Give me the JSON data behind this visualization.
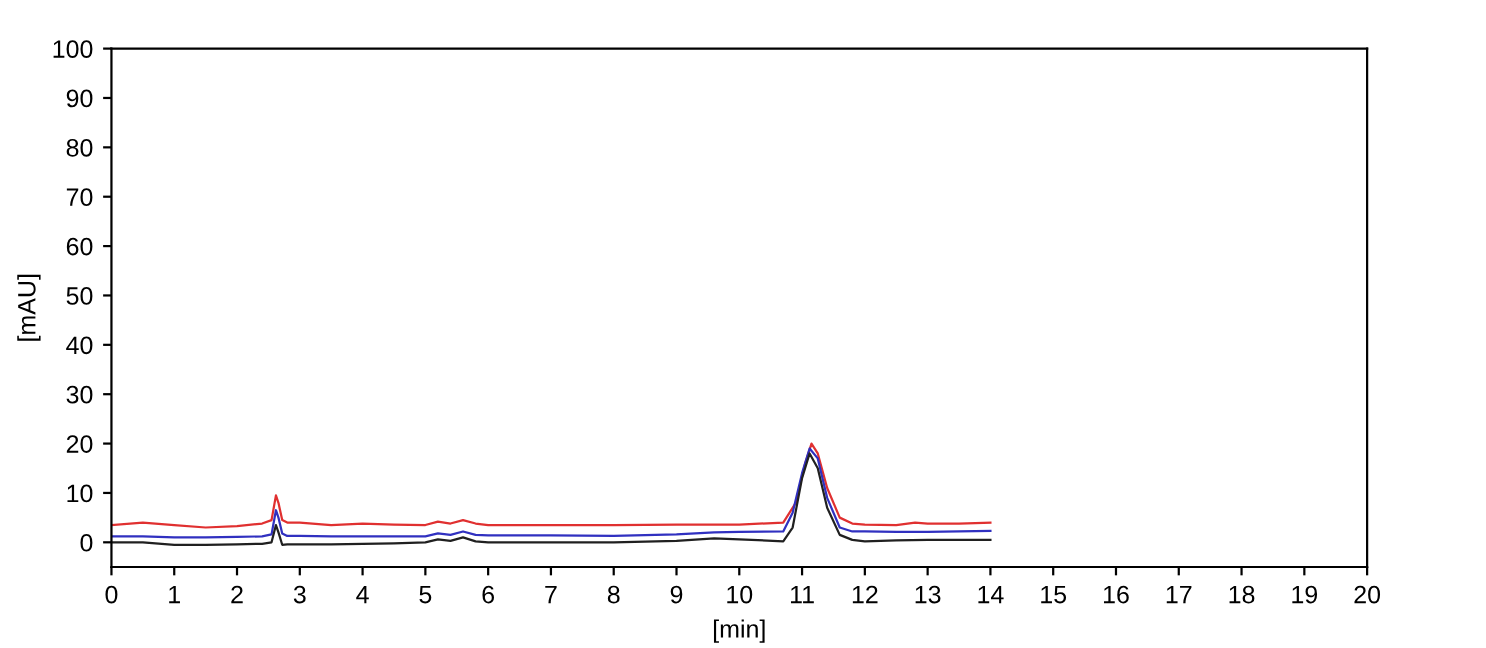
{
  "chart_data": {
    "type": "line",
    "xlabel": "[min]",
    "ylabel": "[mAU]",
    "xlim": [
      0,
      20
    ],
    "ylim": [
      -5,
      100
    ],
    "xticks": [
      0,
      1,
      2,
      3,
      4,
      5,
      6,
      7,
      8,
      9,
      10,
      11,
      12,
      13,
      14,
      15,
      16,
      17,
      18,
      19,
      20
    ],
    "yticks": [
      0,
      10,
      20,
      30,
      40,
      50,
      60,
      70,
      80,
      90,
      100
    ],
    "grid": false,
    "legend": false,
    "marker": "none",
    "line_style": "solid",
    "series": [
      {
        "color": "#e03030",
        "x": [
          0,
          0.5,
          1,
          1.5,
          2,
          2.4,
          2.55,
          2.62,
          2.66,
          2.72,
          2.8,
          3,
          3.5,
          4,
          4.5,
          5,
          5.2,
          5.4,
          5.6,
          5.8,
          6,
          7,
          8,
          9,
          10,
          10.7,
          10.9,
          11.05,
          11.15,
          11.25,
          11.4,
          11.6,
          11.8,
          12,
          12.5,
          12.8,
          13,
          13.5,
          14
        ],
        "values": [
          3.5,
          4,
          3.5,
          3,
          3.3,
          3.8,
          4.5,
          9.5,
          8,
          4.5,
          4,
          4,
          3.5,
          3.8,
          3.6,
          3.5,
          4.2,
          3.8,
          4.5,
          3.8,
          3.5,
          3.5,
          3.5,
          3.6,
          3.6,
          4,
          8,
          16,
          20,
          18,
          11,
          5,
          3.8,
          3.6,
          3.5,
          4,
          3.8,
          3.8,
          4
        ]
      },
      {
        "color": "#3030c0",
        "x": [
          0,
          0.5,
          1,
          1.5,
          2,
          2.4,
          2.55,
          2.62,
          2.66,
          2.72,
          2.8,
          3,
          3.5,
          4,
          4.5,
          5,
          5.2,
          5.4,
          5.6,
          5.8,
          6,
          7,
          8,
          9,
          9.6,
          10,
          10.7,
          10.85,
          11.0,
          11.12,
          11.25,
          11.4,
          11.6,
          11.8,
          12,
          12.5,
          13,
          13.5,
          14
        ],
        "values": [
          1.2,
          1.2,
          1,
          1,
          1.1,
          1.2,
          1.6,
          6.5,
          5,
          1.8,
          1.3,
          1.3,
          1.2,
          1.2,
          1.2,
          1.2,
          1.8,
          1.5,
          2.2,
          1.5,
          1.4,
          1.4,
          1.3,
          1.6,
          2,
          2.1,
          2.2,
          6,
          14,
          19,
          17,
          9,
          3,
          2.2,
          2.2,
          2.1,
          2.1,
          2.2,
          2.3
        ]
      },
      {
        "color": "#202020",
        "x": [
          0,
          0.5,
          1,
          1.5,
          2,
          2.4,
          2.55,
          2.62,
          2.66,
          2.72,
          2.8,
          3,
          3.5,
          4,
          4.5,
          5,
          5.2,
          5.4,
          5.6,
          5.8,
          6,
          7,
          8,
          9,
          9.6,
          10,
          10.7,
          10.85,
          11.0,
          11.12,
          11.25,
          11.4,
          11.6,
          11.8,
          12,
          12.5,
          13,
          13.5,
          14
        ],
        "values": [
          0,
          0,
          -0.5,
          -0.5,
          -0.4,
          -0.3,
          0,
          3.5,
          2,
          -0.5,
          -0.4,
          -0.4,
          -0.4,
          -0.3,
          -0.2,
          0,
          0.6,
          0.3,
          1,
          0.2,
          0,
          0,
          0,
          0.3,
          0.8,
          0.6,
          0.2,
          3,
          13,
          18,
          15,
          7,
          1.5,
          0.5,
          0.2,
          0.4,
          0.5,
          0.5,
          0.5
        ]
      }
    ]
  }
}
